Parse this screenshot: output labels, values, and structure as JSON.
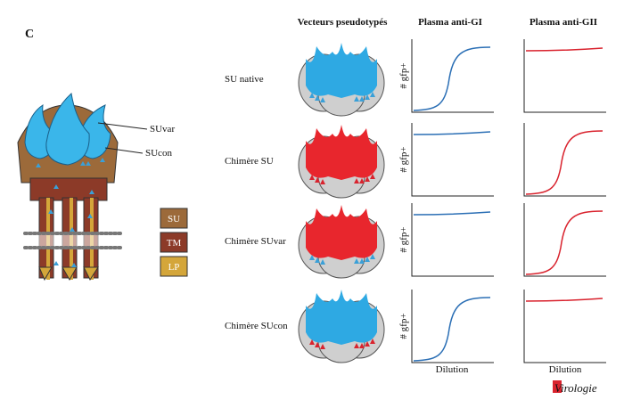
{
  "panel_letter": "C",
  "left_diagram": {
    "labels": [
      "SUvar",
      "SUcon"
    ],
    "legend": [
      "SU",
      "TM",
      "LP"
    ]
  },
  "column_headers": [
    "Vecteurs pseudotypés",
    "Plasma anti-GI",
    "Plasma anti-GII"
  ],
  "rows": [
    "SU native",
    "Chimère SU",
    "Chimère SUvar",
    "Chimère SUcon"
  ],
  "y_axis_label": "# gfp+",
  "x_axis_label": "Dilution",
  "logo": "Virologie"
}
